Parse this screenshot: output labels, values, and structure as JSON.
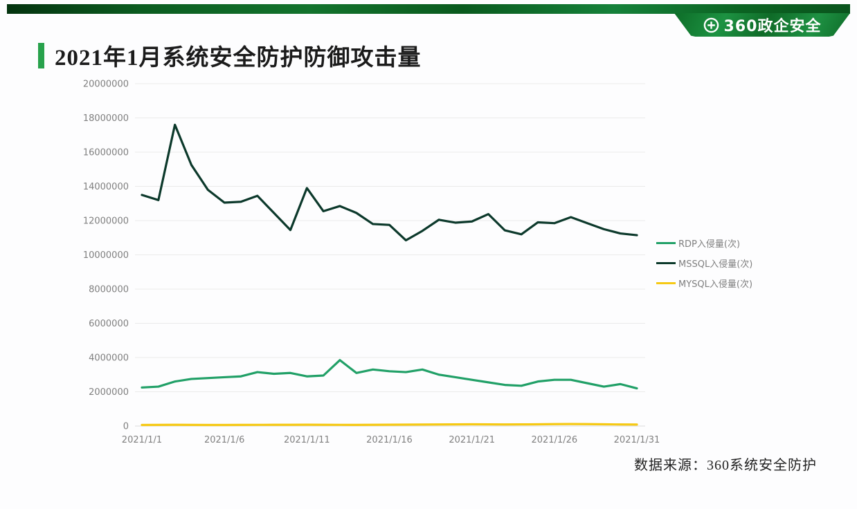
{
  "header": {
    "brand": "360政企安全"
  },
  "title": "2021年1月系统安全防护防御攻击量",
  "footer": {
    "source_label": "数据来源：",
    "source_value": "360系统安全防护"
  },
  "colors": {
    "banner_green_dark": "#0a541d",
    "banner_green": "#1d9242",
    "title_accent": "#28a24c",
    "grid": "#eaeaea",
    "axis_text": "#7f7f7f",
    "rdp_green": "#21a067",
    "mssql_dark_green": "#0c392b",
    "mysql_yellow": "#f6c914"
  },
  "chart_data": {
    "type": "line",
    "title": "2021年1月系统安全防护防御攻击量",
    "xlabel": "",
    "ylabel": "",
    "ylim": [
      0,
      20000000
    ],
    "y_step": 2000000,
    "grid": true,
    "legend_position": "right",
    "x_tick_labels": [
      "2021/1/1",
      "2021/1/6",
      "2021/1/11",
      "2021/1/16",
      "2021/1/21",
      "2021/1/26",
      "2021/1/31"
    ],
    "categories": [
      "2021/1/1",
      "2021/1/2",
      "2021/1/3",
      "2021/1/4",
      "2021/1/5",
      "2021/1/6",
      "2021/1/7",
      "2021/1/8",
      "2021/1/9",
      "2021/1/10",
      "2021/1/11",
      "2021/1/12",
      "2021/1/13",
      "2021/1/14",
      "2021/1/15",
      "2021/1/16",
      "2021/1/17",
      "2021/1/18",
      "2021/1/19",
      "2021/1/20",
      "2021/1/21",
      "2021/1/22",
      "2021/1/23",
      "2021/1/24",
      "2021/1/25",
      "2021/1/26",
      "2021/1/27",
      "2021/1/28",
      "2021/1/29",
      "2021/1/30",
      "2021/1/31"
    ],
    "series": [
      {
        "name": "RDP入侵量(次)",
        "color": "#21a067",
        "values": [
          2250000,
          2300000,
          2600000,
          2750000,
          2800000,
          2850000,
          2900000,
          3150000,
          3050000,
          3100000,
          2900000,
          2950000,
          3850000,
          3100000,
          3300000,
          3200000,
          3150000,
          3300000,
          3000000,
          2850000,
          2700000,
          2550000,
          2400000,
          2350000,
          2600000,
          2700000,
          2700000,
          2500000,
          2300000,
          2450000,
          2200000
        ]
      },
      {
        "name": "MSSQL入侵量(次)",
        "color": "#0c392b",
        "values": [
          13500000,
          13200000,
          17600000,
          15250000,
          13800000,
          13050000,
          13100000,
          13450000,
          12450000,
          11450000,
          13900000,
          12550000,
          12850000,
          12450000,
          11800000,
          11750000,
          10850000,
          11400000,
          12050000,
          11880000,
          11950000,
          12380000,
          11430000,
          11200000,
          11900000,
          11850000,
          12200000,
          11850000,
          11500000,
          11250000,
          11150000
        ]
      },
      {
        "name": "MYSQL入侵量(次)",
        "color": "#f6c914",
        "values": [
          60000,
          65000,
          70000,
          65000,
          60000,
          62000,
          65000,
          68000,
          70000,
          72000,
          75000,
          70000,
          68000,
          65000,
          70000,
          75000,
          80000,
          85000,
          90000,
          95000,
          100000,
          95000,
          90000,
          95000,
          100000,
          110000,
          115000,
          110000,
          100000,
          90000,
          85000
        ]
      }
    ]
  }
}
